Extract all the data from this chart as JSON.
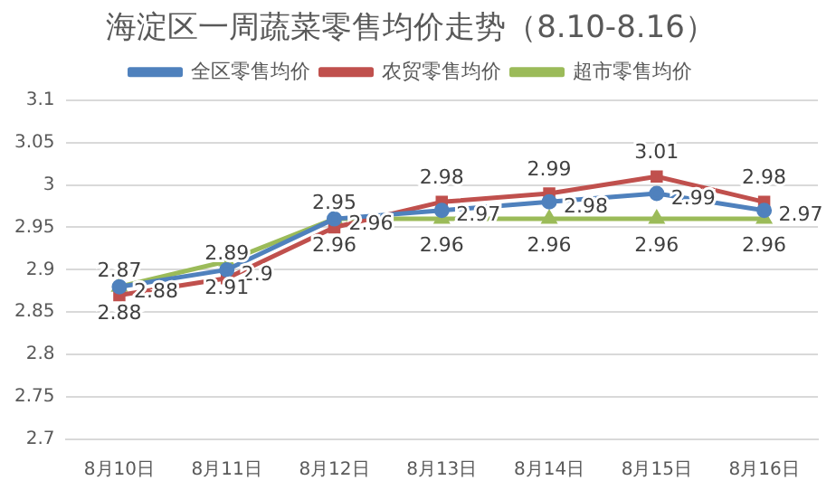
{
  "chart_data": {
    "type": "line",
    "title": "海淀区一周蔬菜零售均价走势（8.10-8.16）",
    "categories": [
      "8月10日",
      "8月11日",
      "8月12日",
      "8月13日",
      "8月14日",
      "8月15日",
      "8月16日"
    ],
    "series": [
      {
        "name": "全区零售均价",
        "color": "#4f81bd",
        "marker": "circle",
        "values": [
          2.88,
          2.9,
          2.96,
          2.97,
          2.98,
          2.99,
          2.97
        ]
      },
      {
        "name": "农贸零售均价",
        "color": "#c0504d",
        "marker": "square",
        "values": [
          2.87,
          2.89,
          2.95,
          2.98,
          2.99,
          3.01,
          2.98
        ]
      },
      {
        "name": "超市零售均价",
        "color": "#9bbb59",
        "marker": "triangle",
        "values": [
          2.88,
          2.91,
          2.96,
          2.96,
          2.96,
          2.96,
          2.96
        ]
      }
    ],
    "ylim": [
      2.7,
      3.1
    ],
    "yticks": [
      2.7,
      2.75,
      2.8,
      2.85,
      2.9,
      2.95,
      3,
      3.05,
      3.1
    ],
    "grid": "y",
    "legend": "top",
    "data_labels": true,
    "line_style": "solid"
  }
}
